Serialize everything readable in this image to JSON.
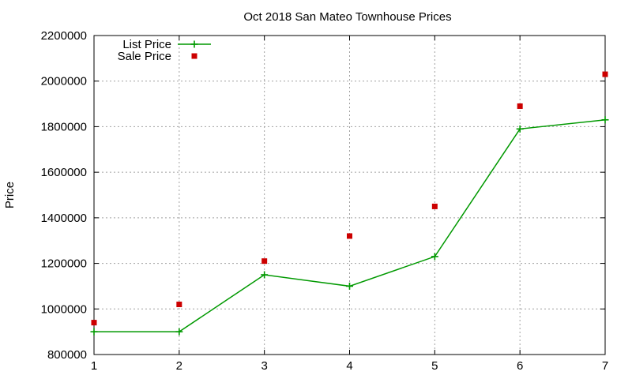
{
  "chart_data": {
    "type": "line",
    "title": "Oct 2018 San Mateo Townhouse Prices",
    "xlabel": "",
    "ylabel": "Price",
    "x": [
      1,
      2,
      3,
      4,
      5,
      6,
      7
    ],
    "xlim": [
      1,
      7
    ],
    "ylim": [
      800000,
      2200000
    ],
    "xticks": [
      1,
      2,
      3,
      4,
      5,
      6,
      7
    ],
    "yticks": [
      800000,
      1000000,
      1200000,
      1400000,
      1600000,
      1800000,
      2000000,
      2200000
    ],
    "grid": true,
    "legend_position": "top-left",
    "series": [
      {
        "name": "List Price",
        "style": "linespoints",
        "marker": "plus",
        "color": "#009900",
        "values": [
          900000,
          900000,
          1150000,
          1100000,
          1230000,
          1790000,
          1830000
        ]
      },
      {
        "name": "Sale Price",
        "style": "points",
        "marker": "square",
        "color": "#cc0000",
        "values": [
          940000,
          1020000,
          1210000,
          1320000,
          1450000,
          1890000,
          2030000
        ]
      }
    ]
  }
}
